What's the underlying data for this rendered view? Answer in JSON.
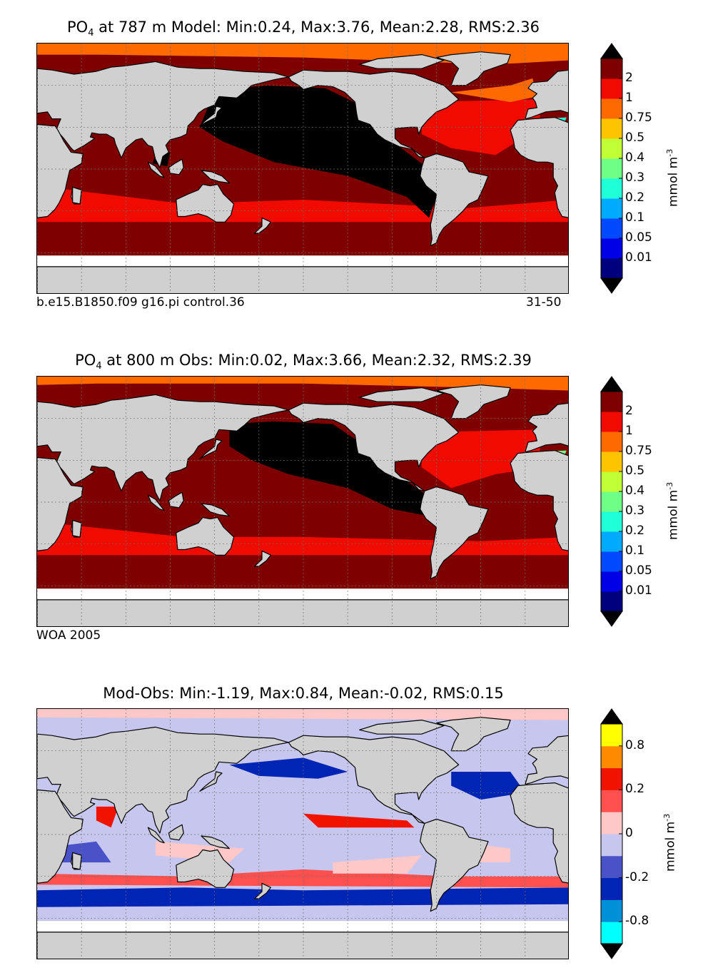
{
  "chart_data": [
    {
      "type": "heatmap",
      "title_prefix": "PO",
      "title_sub": "4",
      "title_rest": " at 787 m Model: Min:0.24, Max:3.76, Mean:2.28, RMS:2.36",
      "footer_left": "b.e15.B1850.f09 g16.pi control.36",
      "footer_right": "31-50",
      "colorbar": {
        "levels": [
          "0.01",
          "0.05",
          "0.1",
          "0.2",
          "0.3",
          "0.4",
          "0.5",
          "0.75",
          "1",
          "2"
        ],
        "colors": [
          "#00007f",
          "#0000e6",
          "#0049ff",
          "#00aaff",
          "#1fffd8",
          "#70ff86",
          "#c0ff36",
          "#ffc400",
          "#ff6a00",
          "#f00a00",
          "#7f0000"
        ],
        "over_color": "#000000",
        "under_color": "#000000",
        "unit": "mmol m",
        "unit_sup": "-3"
      }
    },
    {
      "type": "heatmap",
      "title_prefix": "PO",
      "title_sub": "4",
      "title_rest": " at 800 m Obs: Min:0.02, Max:3.66, Mean:2.32, RMS:2.39",
      "footer_left": "WOA 2005",
      "colorbar": {
        "levels": [
          "0.01",
          "0.05",
          "0.1",
          "0.2",
          "0.3",
          "0.4",
          "0.5",
          "0.75",
          "1",
          "2"
        ],
        "colors": [
          "#00007f",
          "#0000e6",
          "#0049ff",
          "#00aaff",
          "#1fffd8",
          "#70ff86",
          "#c0ff36",
          "#ffc400",
          "#ff6a00",
          "#f00a00",
          "#7f0000"
        ],
        "over_color": "#000000",
        "under_color": "#000000",
        "unit": "mmol m",
        "unit_sup": "-3"
      }
    },
    {
      "type": "heatmap",
      "title_rest": "Mod-Obs: Min:-1.19, Max:0.84, Mean:-0.02, RMS:0.15",
      "colorbar": {
        "levels": [
          "-0.8",
          "-0.2",
          "0",
          "0.2",
          "0.8"
        ],
        "tick_positions": [
          1,
          3,
          5,
          7,
          9
        ],
        "colors": [
          "#00ffff",
          "#0090d8",
          "#0024b4",
          "#4a52c8",
          "#c6c6ee",
          "#ffc8c8",
          "#ff5050",
          "#f01400",
          "#ff8a00",
          "#ffff00"
        ],
        "over_color": "#000000",
        "under_color": "#000000",
        "unit": "mmol m",
        "unit_sup": "-3"
      }
    }
  ],
  "map_style": {
    "land": "#d0d0d0",
    "missing": "#ffffff",
    "grid": "#707070",
    "coast": "#000000"
  }
}
